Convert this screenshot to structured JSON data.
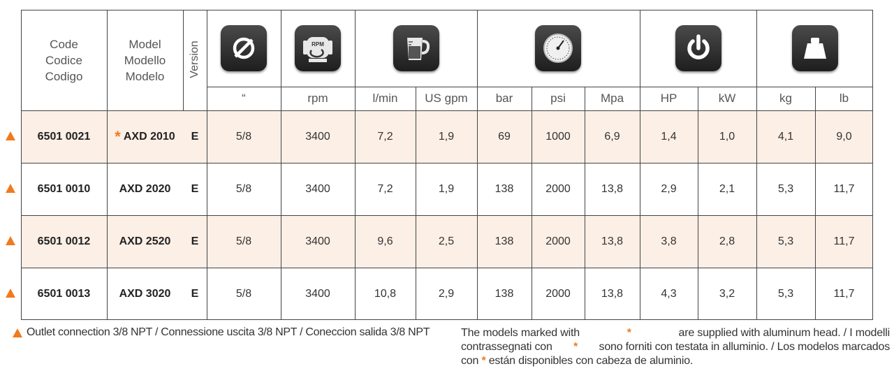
{
  "header": {
    "code": [
      "Code",
      "Codice",
      "Codigo"
    ],
    "model": [
      "Model",
      "Modello",
      "Modelo"
    ],
    "version": "Version",
    "units": [
      "“",
      "rpm",
      "l/min",
      "US gpm",
      "bar",
      "psi",
      "Mpa",
      "HP",
      "kW",
      "kg",
      "lb"
    ]
  },
  "icons": [
    "diameter-icon",
    "rpm-motor-icon",
    "flow-jug-icon",
    "pressure-gauge-icon",
    "power-icon",
    "weight-icon"
  ],
  "icon_texts": {
    "diameter": "Ø",
    "rpm": "RPM"
  },
  "rows": [
    {
      "code": "6501 0021",
      "model_mark": "*",
      "model": "AXD 2010",
      "version": "E",
      "values": [
        "5/8",
        "3400",
        "7,2",
        "1,9",
        "69",
        "1000",
        "6,9",
        "1,4",
        "1,0",
        "4,1",
        "9,0"
      ]
    },
    {
      "code": "6501 0010",
      "model_mark": "",
      "model": "AXD 2020",
      "version": "E",
      "values": [
        "5/8",
        "3400",
        "7,2",
        "1,9",
        "138",
        "2000",
        "13,8",
        "2,9",
        "2,1",
        "5,3",
        "11,7"
      ]
    },
    {
      "code": "6501 0012",
      "model_mark": "",
      "model": "AXD 2520",
      "version": "E",
      "values": [
        "5/8",
        "3400",
        "9,6",
        "2,5",
        "138",
        "2000",
        "13,8",
        "3,8",
        "2,8",
        "5,3",
        "11,7"
      ]
    },
    {
      "code": "6501 0013",
      "model_mark": "",
      "model": "AXD 3020",
      "version": "E",
      "values": [
        "5/8",
        "3400",
        "10,8",
        "2,9",
        "138",
        "2000",
        "13,8",
        "4,3",
        "3,2",
        "5,3",
        "11,7"
      ]
    }
  ],
  "footnotes": {
    "outlet": "Outlet connection 3/8 NPT / Connessione uscita 3/8 NPT / Coneccion salida 3/8 NPT",
    "aluminum_1a": "The models marked with",
    "aluminum_1b": "are supplied with aluminum head. / I modelli",
    "aluminum_2a": "contrassegnati con",
    "aluminum_2b": "sono forniti con testata in alluminio. / Los modelos marcados",
    "aluminum_3a": "con",
    "aluminum_3b": "están disponibles con cabeza de aluminio.",
    "star": "*"
  },
  "colors": {
    "accent": "#f07a1e",
    "row_highlight": "#fcefe6",
    "icon_bg": "#2b2b2b"
  }
}
